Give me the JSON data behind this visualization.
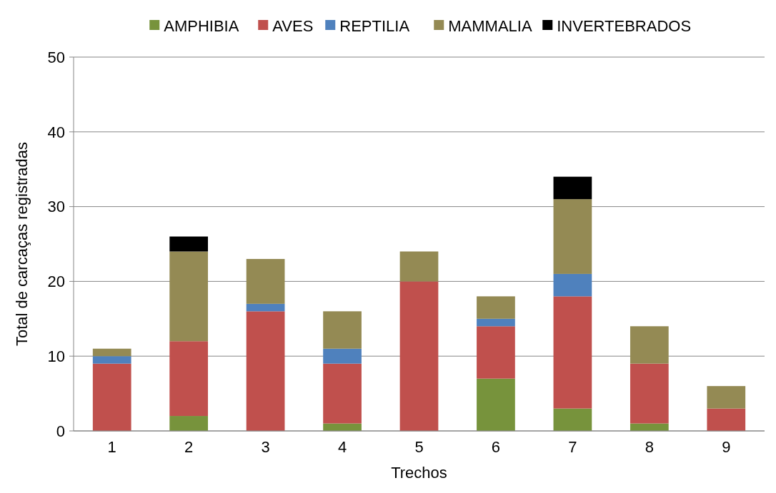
{
  "chart_data": {
    "type": "bar",
    "stacked": true,
    "xlabel": "Trechos",
    "ylabel": "Total de carcaças registradas",
    "categories": [
      "1",
      "2",
      "3",
      "4",
      "5",
      "6",
      "7",
      "8",
      "9"
    ],
    "series": [
      {
        "name": "AMPHIBIA",
        "color": "#77933c",
        "values": [
          0,
          2,
          0,
          1,
          0,
          7,
          3,
          1,
          0
        ]
      },
      {
        "name": "AVES",
        "color": "#c0504d",
        "values": [
          9,
          10,
          16,
          8,
          20,
          7,
          15,
          8,
          3
        ]
      },
      {
        "name": "REPTILIA",
        "color": "#4f81bd",
        "values": [
          1,
          0,
          1,
          2,
          0,
          1,
          3,
          0,
          0
        ]
      },
      {
        "name": "MAMMALIA",
        "color": "#948a54",
        "values": [
          1,
          12,
          6,
          5,
          4,
          3,
          10,
          5,
          3
        ]
      },
      {
        "name": "INVERTEBRADOS",
        "color": "#000000",
        "values": [
          0,
          2,
          0,
          0,
          0,
          0,
          3,
          0,
          0
        ]
      }
    ],
    "ylim": [
      0,
      50
    ],
    "yticks": [
      0,
      10,
      20,
      30,
      40,
      50
    ],
    "grid": "y",
    "legend": "top"
  }
}
